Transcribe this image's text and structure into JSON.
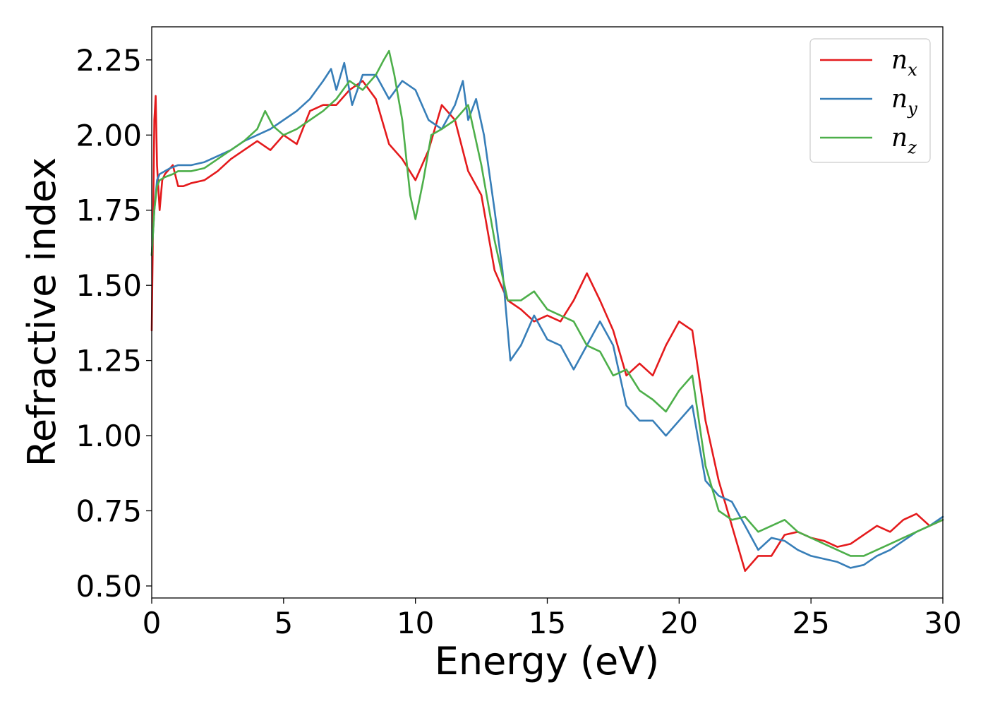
{
  "chart_data": {
    "type": "line",
    "title": "",
    "xlabel": "Energy (eV)",
    "ylabel": "Refractive index",
    "xlim": [
      0,
      30
    ],
    "ylim": [
      0.46,
      2.36
    ],
    "xticks": [
      "0",
      "5",
      "10",
      "15",
      "20",
      "25",
      "30"
    ],
    "yticks": [
      "0.50",
      "0.75",
      "1.00",
      "1.25",
      "1.50",
      "1.75",
      "2.00",
      "2.25"
    ],
    "grid": false,
    "legend_position": "top-right",
    "series": [
      {
        "name": "n_x",
        "legend_main": "n",
        "legend_sub": "x",
        "color": "#e41a1c",
        "x": [
          0.0,
          0.1,
          0.15,
          0.2,
          0.3,
          0.4,
          0.5,
          0.6,
          0.8,
          1.0,
          1.2,
          1.5,
          2.0,
          2.5,
          3.0,
          3.5,
          4.0,
          4.5,
          5.0,
          5.5,
          6.0,
          6.5,
          7.0,
          7.5,
          8.0,
          8.5,
          9.0,
          9.5,
          10.0,
          10.5,
          11.0,
          11.5,
          12.0,
          12.5,
          13.0,
          13.5,
          14.0,
          14.5,
          15.0,
          15.5,
          16.0,
          16.5,
          17.0,
          17.5,
          18.0,
          18.5,
          19.0,
          19.5,
          20.0,
          20.5,
          21.0,
          21.5,
          22.0,
          22.5,
          23.0,
          23.5,
          24.0,
          24.5,
          25.0,
          25.5,
          26.0,
          26.5,
          27.0,
          27.5,
          28.0,
          28.5,
          29.0,
          29.5,
          30.0
        ],
        "values": [
          1.35,
          2.05,
          2.13,
          1.9,
          1.75,
          1.85,
          1.87,
          1.88,
          1.9,
          1.83,
          1.83,
          1.84,
          1.85,
          1.88,
          1.92,
          1.95,
          1.98,
          1.95,
          2.0,
          1.97,
          2.08,
          2.1,
          2.1,
          2.15,
          2.18,
          2.12,
          1.97,
          1.92,
          1.85,
          1.95,
          2.1,
          2.05,
          1.88,
          1.8,
          1.55,
          1.45,
          1.42,
          1.38,
          1.4,
          1.38,
          1.45,
          1.54,
          1.45,
          1.35,
          1.2,
          1.24,
          1.2,
          1.3,
          1.38,
          1.35,
          1.05,
          0.85,
          0.7,
          0.55,
          0.6,
          0.6,
          0.67,
          0.68,
          0.66,
          0.65,
          0.63,
          0.64,
          0.67,
          0.7,
          0.68,
          0.72,
          0.74,
          0.7,
          0.72
        ]
      },
      {
        "name": "n_y",
        "legend_main": "n",
        "legend_sub": "y",
        "color": "#377eb8",
        "x": [
          0.0,
          0.1,
          0.2,
          0.3,
          0.5,
          0.7,
          1.0,
          1.5,
          2.0,
          2.5,
          3.0,
          3.5,
          4.0,
          4.5,
          5.0,
          5.5,
          6.0,
          6.5,
          6.8,
          7.0,
          7.3,
          7.6,
          8.0,
          8.5,
          9.0,
          9.5,
          10.0,
          10.5,
          11.0,
          11.5,
          11.8,
          12.0,
          12.3,
          12.6,
          13.0,
          13.3,
          13.6,
          14.0,
          14.5,
          15.0,
          15.5,
          16.0,
          16.5,
          17.0,
          17.5,
          18.0,
          18.5,
          19.0,
          19.5,
          20.0,
          20.5,
          21.0,
          21.5,
          22.0,
          22.5,
          23.0,
          23.5,
          24.0,
          24.5,
          25.0,
          25.5,
          26.0,
          26.5,
          27.0,
          27.5,
          28.0,
          28.5,
          29.0,
          29.5,
          30.0
        ],
        "values": [
          1.6,
          1.75,
          1.85,
          1.87,
          1.88,
          1.89,
          1.9,
          1.9,
          1.91,
          1.93,
          1.95,
          1.98,
          2.0,
          2.02,
          2.05,
          2.08,
          2.12,
          2.18,
          2.22,
          2.15,
          2.24,
          2.1,
          2.2,
          2.2,
          2.12,
          2.18,
          2.15,
          2.05,
          2.02,
          2.1,
          2.18,
          2.05,
          2.12,
          2.0,
          1.75,
          1.55,
          1.25,
          1.3,
          1.4,
          1.32,
          1.3,
          1.22,
          1.3,
          1.38,
          1.3,
          1.1,
          1.05,
          1.05,
          1.0,
          1.05,
          1.1,
          0.85,
          0.8,
          0.78,
          0.7,
          0.62,
          0.66,
          0.65,
          0.62,
          0.6,
          0.59,
          0.58,
          0.56,
          0.57,
          0.6,
          0.62,
          0.65,
          0.68,
          0.7,
          0.73
        ]
      },
      {
        "name": "n_z",
        "legend_main": "n",
        "legend_sub": "z",
        "color": "#4daf4a",
        "x": [
          0.0,
          0.1,
          0.2,
          0.3,
          0.5,
          0.8,
          1.0,
          1.5,
          2.0,
          2.5,
          3.0,
          3.5,
          4.0,
          4.3,
          4.6,
          5.0,
          5.5,
          6.0,
          6.5,
          7.0,
          7.5,
          8.0,
          8.5,
          8.8,
          9.0,
          9.2,
          9.5,
          9.8,
          10.0,
          10.3,
          10.6,
          11.0,
          11.5,
          12.0,
          12.5,
          13.0,
          13.5,
          14.0,
          14.5,
          15.0,
          15.5,
          16.0,
          16.5,
          17.0,
          17.5,
          18.0,
          18.5,
          19.0,
          19.5,
          20.0,
          20.5,
          21.0,
          21.5,
          22.0,
          22.5,
          23.0,
          23.5,
          24.0,
          24.5,
          25.0,
          25.5,
          26.0,
          26.5,
          27.0,
          27.5,
          28.0,
          28.5,
          29.0,
          29.5,
          30.0
        ],
        "values": [
          1.6,
          1.75,
          1.83,
          1.85,
          1.86,
          1.87,
          1.88,
          1.88,
          1.89,
          1.92,
          1.95,
          1.98,
          2.02,
          2.08,
          2.03,
          2.0,
          2.02,
          2.05,
          2.08,
          2.12,
          2.18,
          2.15,
          2.2,
          2.25,
          2.28,
          2.2,
          2.05,
          1.8,
          1.72,
          1.85,
          2.0,
          2.02,
          2.05,
          2.1,
          1.9,
          1.65,
          1.45,
          1.45,
          1.48,
          1.42,
          1.4,
          1.38,
          1.3,
          1.28,
          1.2,
          1.22,
          1.15,
          1.12,
          1.08,
          1.15,
          1.2,
          0.9,
          0.75,
          0.72,
          0.73,
          0.68,
          0.7,
          0.72,
          0.68,
          0.66,
          0.64,
          0.62,
          0.6,
          0.6,
          0.62,
          0.64,
          0.66,
          0.68,
          0.7,
          0.72
        ]
      }
    ]
  }
}
